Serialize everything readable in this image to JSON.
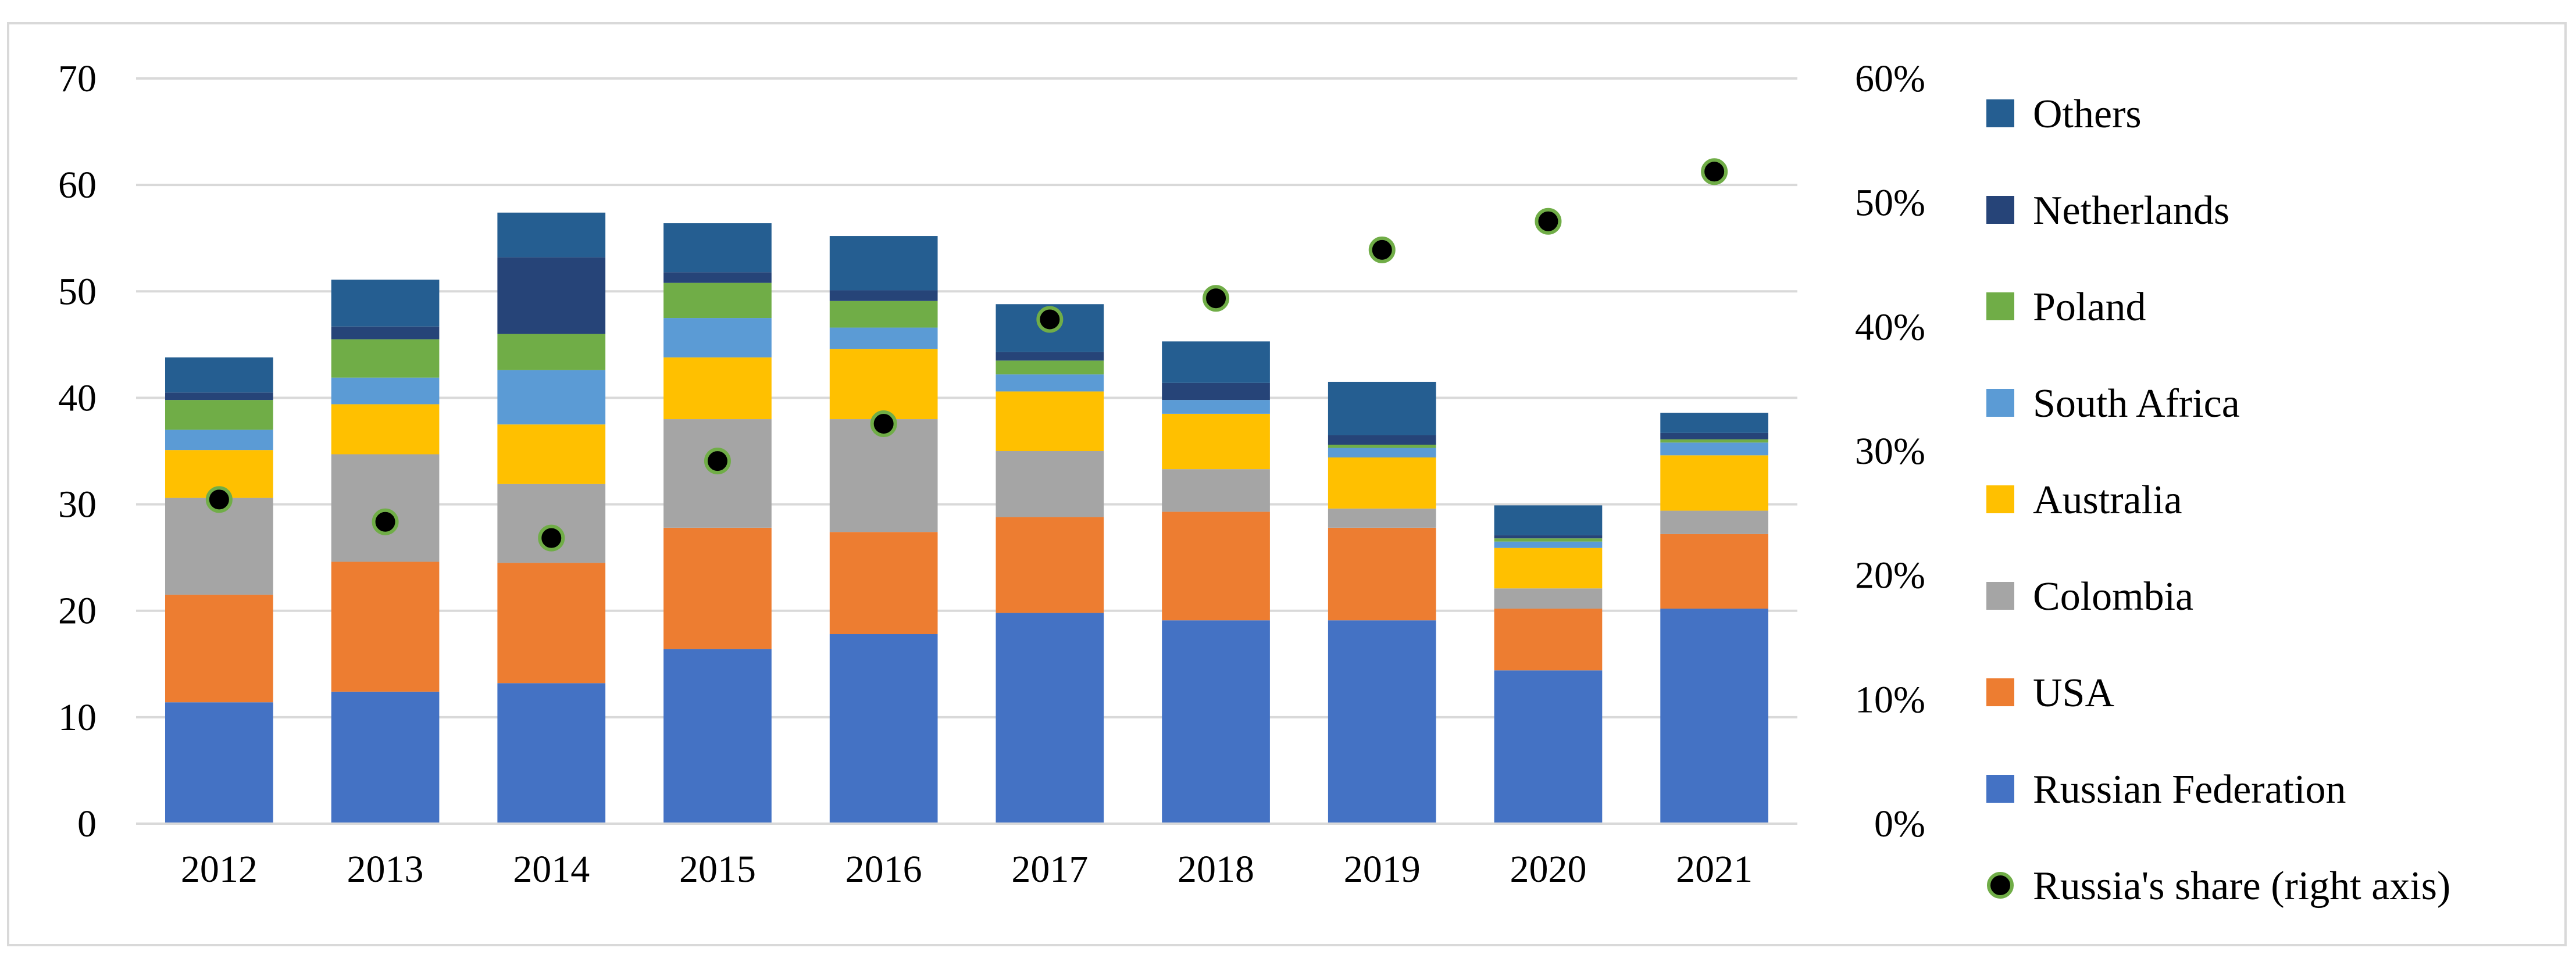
{
  "chart_data": {
    "type": "bar",
    "stacked": true,
    "title": "",
    "xlabel": "",
    "ylabel": "",
    "categories": [
      "2012",
      "2013",
      "2014",
      "2015",
      "2016",
      "2017",
      "2018",
      "2019",
      "2020",
      "2021"
    ],
    "ylim": [
      0,
      70
    ],
    "y_ticks": [
      "0",
      "10",
      "20",
      "30",
      "40",
      "50",
      "60",
      "70"
    ],
    "y2lim": [
      0,
      0.6
    ],
    "y2_ticks": [
      "0%",
      "10%",
      "20%",
      "30%",
      "40%",
      "50%",
      "60%"
    ],
    "grid": true,
    "legend_position": "right",
    "series": [
      {
        "name": "Russian Federation",
        "color": "#4472C4",
        "values": [
          11.4,
          12.4,
          13.2,
          16.4,
          17.8,
          19.8,
          19.1,
          19.1,
          14.4,
          20.2
        ]
      },
      {
        "name": "USA",
        "color": "#ED7D31",
        "values": [
          10.1,
          12.2,
          11.3,
          11.4,
          9.6,
          9.0,
          10.2,
          8.7,
          5.8,
          7.0
        ]
      },
      {
        "name": "Colombia",
        "color": "#A5A5A5",
        "values": [
          9.1,
          10.1,
          7.4,
          10.2,
          10.6,
          6.2,
          4.0,
          1.8,
          1.9,
          2.2
        ]
      },
      {
        "name": "Australia",
        "color": "#FFC000",
        "values": [
          4.5,
          4.7,
          5.6,
          5.8,
          6.6,
          5.6,
          5.2,
          4.8,
          3.8,
          5.2
        ]
      },
      {
        "name": "South Africa",
        "color": "#5B9BD5",
        "values": [
          1.9,
          2.5,
          5.1,
          3.7,
          2.0,
          1.6,
          1.3,
          0.9,
          0.6,
          1.2
        ]
      },
      {
        "name": "Poland",
        "color": "#70AD47",
        "values": [
          2.8,
          3.6,
          3.4,
          3.3,
          2.5,
          1.3,
          0.0,
          0.3,
          0.3,
          0.3
        ]
      },
      {
        "name": "Netherlands",
        "color": "#264478",
        "values": [
          0.7,
          1.2,
          7.2,
          1.0,
          1.0,
          0.8,
          1.6,
          0.9,
          0.3,
          0.6
        ]
      },
      {
        "name": "Others",
        "color": "#255E91",
        "values": [
          3.3,
          4.4,
          4.2,
          4.6,
          5.1,
          4.5,
          3.9,
          5.0,
          2.8,
          1.9
        ]
      }
    ],
    "line_series": {
      "name": "Russia's share (right axis)",
      "axis": "right",
      "marker_color": "#000000",
      "marker_edge_color": "#70AD47",
      "values": [
        0.261,
        0.243,
        0.23,
        0.292,
        0.322,
        0.406,
        0.423,
        0.462,
        0.485,
        0.525
      ]
    }
  }
}
